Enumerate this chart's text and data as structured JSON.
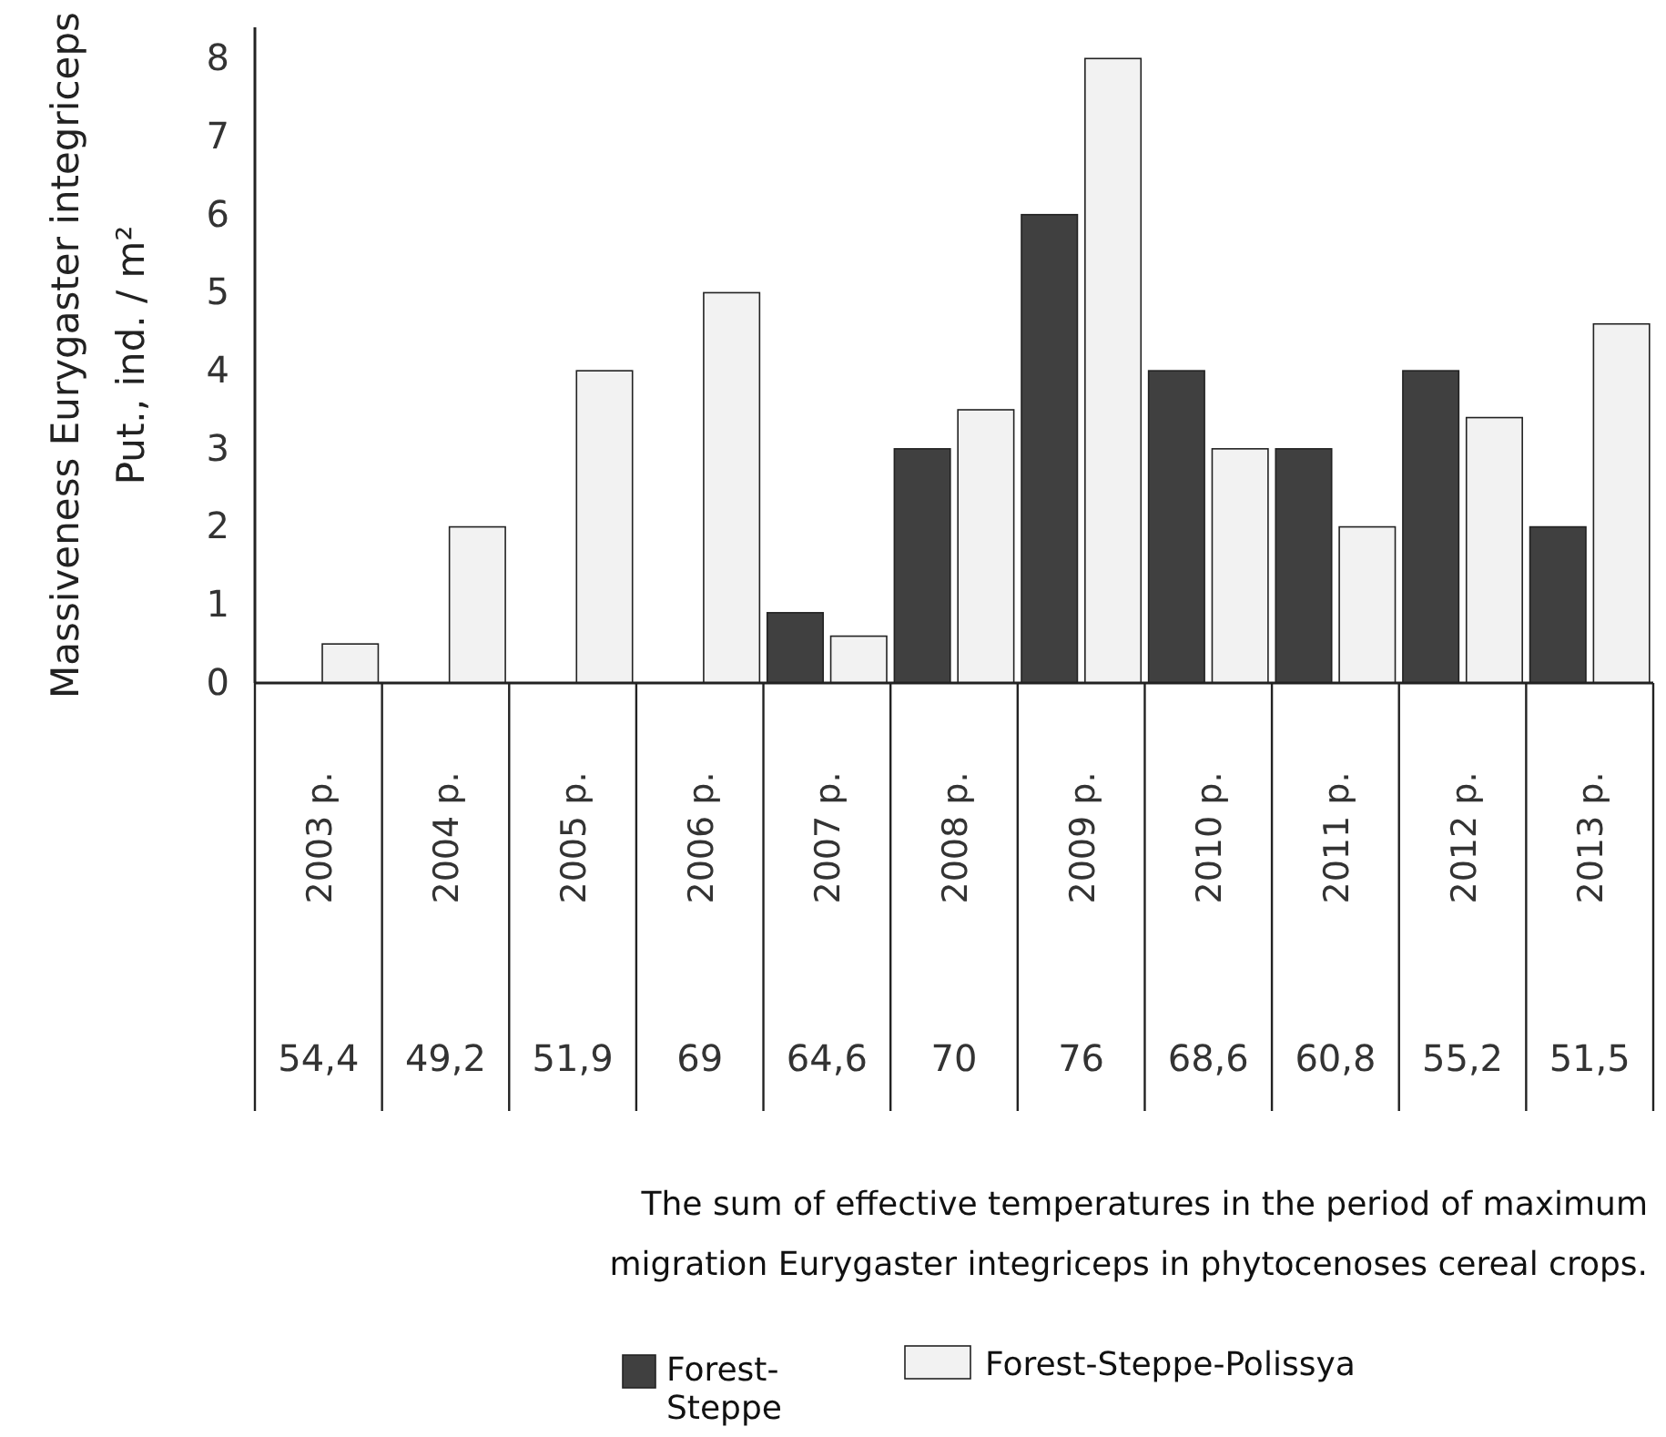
{
  "chart_data": {
    "type": "bar",
    "ylabel": "Massiveness  Eurygaster integriceps\nPut., ind. / m²",
    "categories": [
      "2003 p.",
      "2004 p.",
      "2005 p.",
      "2006 p.",
      "2007 p.",
      "2008 p.",
      "2009 p.",
      "2010 p.",
      "2011 p.",
      "2012 p.",
      "2013 p."
    ],
    "series": [
      {
        "name": "Forest-Steppe",
        "color": "#404040",
        "values": [
          0,
          0,
          0,
          0,
          0.9,
          3,
          6,
          4,
          3,
          4,
          2
        ]
      },
      {
        "name": "Forest-Steppe-Polissya",
        "color": "#f2f2f2",
        "values": [
          0.5,
          2,
          4,
          5,
          0.6,
          3.5,
          8,
          3,
          2,
          3.4,
          4.6
        ]
      }
    ],
    "ylim": [
      0,
      8.4
    ],
    "yticks": [
      0,
      1,
      2,
      3,
      4,
      5,
      6,
      7,
      8
    ],
    "grid": false,
    "legend": "bottom",
    "annotations": [
      "54,4",
      "49,2",
      "51,9",
      "69",
      "64,6",
      "70",
      "76",
      "68,6",
      "60,8",
      "55,2",
      "51,5",
      "The sum of effective temperatures in the period of maximum\nmigration Eurygaster integriceps in  phytocenoses cereal crops."
    ]
  }
}
